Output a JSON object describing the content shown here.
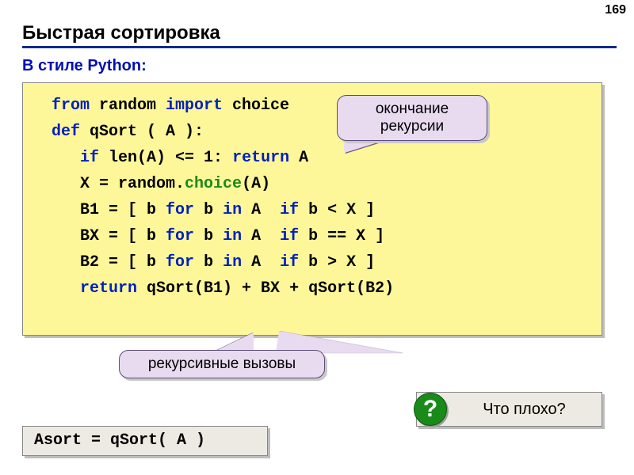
{
  "page_number": "169",
  "title": "Быстрая сортировка",
  "subtitle": "В стиле Python:",
  "code": {
    "line1": {
      "t1": "from",
      "t2": " random ",
      "t3": "import",
      "t4": " choice"
    },
    "line2": {
      "t1": "def",
      "t2": " qSort ( A ):"
    },
    "line3": {
      "indent": "   ",
      "t1": "if",
      "t2": " len(A) <= 1: ",
      "t3": "return",
      "t4": " A"
    },
    "line4": {
      "indent": "   ",
      "t1": "X = random.",
      "t2": "choice",
      "t3": "(A)"
    },
    "line5": {
      "indent": "   ",
      "t1": "B1 = [ b ",
      "t2": "for",
      "t3": " b ",
      "t4": "in",
      "t5": " A  ",
      "t6": "if",
      "t7": " b < X ]"
    },
    "line6": {
      "indent": "   ",
      "t1": "BX = [ b ",
      "t2": "for",
      "t3": " b ",
      "t4": "in",
      "t5": " A  ",
      "t6": "if",
      "t7": " b == X ]"
    },
    "line7": {
      "indent": "   ",
      "t1": "B2 = [ b ",
      "t2": "for",
      "t3": " b ",
      "t4": "in",
      "t5": " A  ",
      "t6": "if",
      "t7": " b > X ]"
    },
    "line8": {
      "indent": "   ",
      "t1": "return",
      "t2": " qSort(B1) + BX + qSort(B2)"
    }
  },
  "callout_top": {
    "l1": "окончание",
    "l2": "рекурсии"
  },
  "callout_bottom": "рекурсивные вызовы",
  "question": {
    "mark": "?",
    "text": "Что плохо?"
  },
  "asort": "Asort = qSort( A )",
  "colors": {
    "code_bg": "#fef79a",
    "keyword": "#0020c0",
    "builtin": "#1a8a1a",
    "callout_bg": "#e8dbf0",
    "underline": "#002a8a",
    "green_circle": "#1a8a1a",
    "grey_box": "#eceae2"
  }
}
